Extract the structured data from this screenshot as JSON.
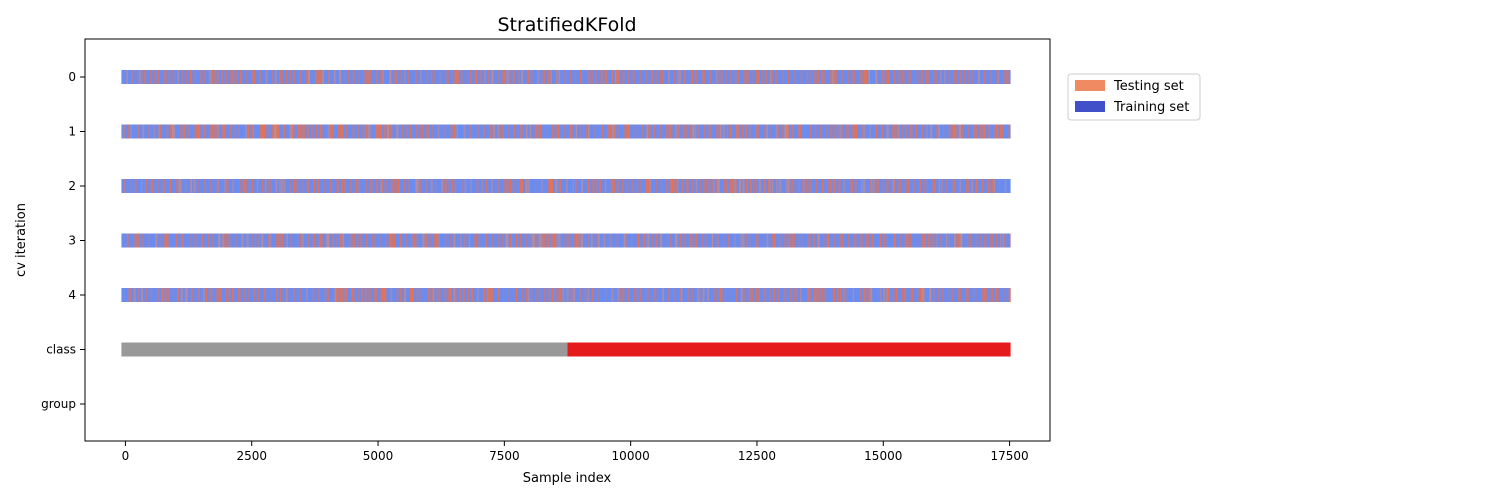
{
  "chart_data": {
    "type": "table",
    "title": "StratifiedKFold",
    "xlabel": "Sample index",
    "ylabel": "cv iteration",
    "xlim": [
      -800,
      18300
    ],
    "x_ticks": [
      0,
      2500,
      5000,
      7500,
      10000,
      12500,
      15000,
      17500
    ],
    "x_tick_labels": [
      "0",
      "2500",
      "5000",
      "7500",
      "10000",
      "12500",
      "15000",
      "17500"
    ],
    "n_samples": 17500,
    "sample_start": 0,
    "rows": [
      "0",
      "1",
      "2",
      "3",
      "4",
      "class",
      "group"
    ],
    "legend": [
      {
        "label": "Testing set",
        "color": "#ef8a62"
      },
      {
        "label": "Training set",
        "color": "#4050c8"
      }
    ],
    "legend_position": "outside right, top",
    "colors": {
      "training": "#6a8cf0",
      "testing": "#e9714f",
      "class_0": "#999999",
      "class_1": "#e41a1c"
    },
    "folds": [
      {
        "name": "0",
        "testing_fraction": 0.2
      },
      {
        "name": "1",
        "testing_fraction": 0.2
      },
      {
        "name": "2",
        "testing_fraction": 0.2
      },
      {
        "name": "3",
        "testing_fraction": 0.2
      },
      {
        "name": "4",
        "testing_fraction": 0.2
      }
    ],
    "class_segments": [
      {
        "class": 0,
        "start": 0,
        "end": 8750
      },
      {
        "class": 1,
        "start": 8750,
        "end": 17500
      }
    ],
    "grid": false
  }
}
